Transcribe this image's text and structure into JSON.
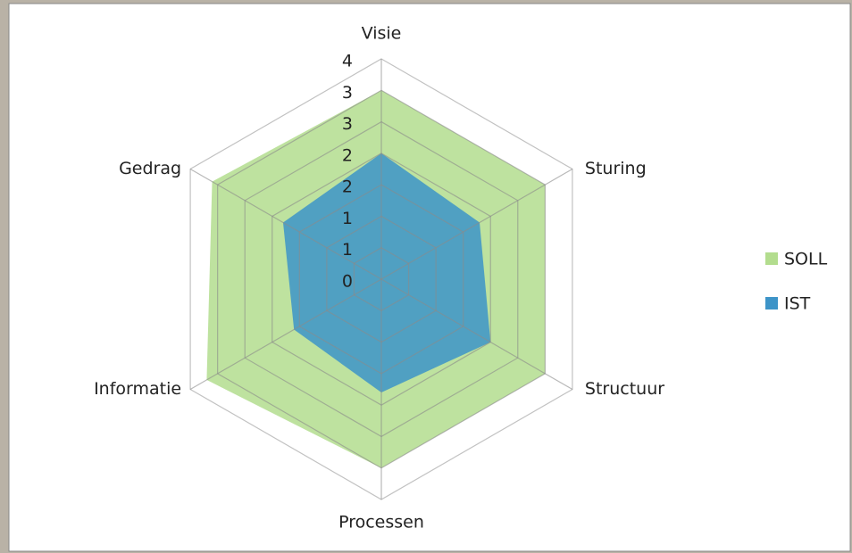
{
  "chart_data": {
    "type": "radar",
    "categories": [
      "Visie",
      "Sturing",
      "Structuur",
      "Processen",
      "Informatie",
      "Gedrag"
    ],
    "series": [
      {
        "name": "SOLL",
        "color": "#b3dd8e",
        "values": [
          3.0,
          3.0,
          3.0,
          3.0,
          3.2,
          3.1
        ]
      },
      {
        "name": "IST",
        "color": "#3d94c8",
        "values": [
          2.0,
          1.8,
          2.0,
          1.8,
          1.6,
          1.8
        ]
      }
    ],
    "ylim": [
      0,
      3.5
    ],
    "yticks": [
      0,
      {
        "value": 0.5,
        "label": "1"
      },
      1,
      {
        "value": 1.5,
        "label": "2"
      },
      2,
      {
        "value": 2.5,
        "label": "3"
      },
      3,
      {
        "value": 3.5,
        "label": "4"
      }
    ],
    "grid": true,
    "legend": "right"
  }
}
